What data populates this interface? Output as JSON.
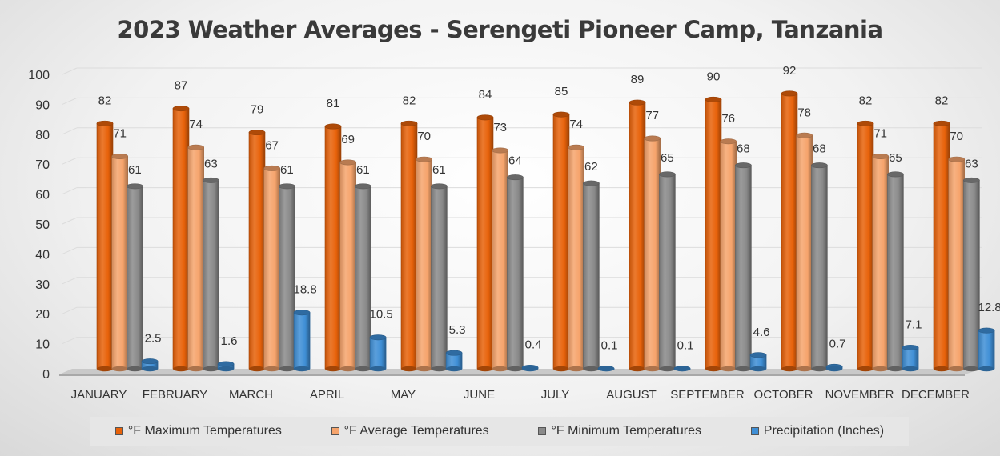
{
  "chart_data": {
    "type": "bar",
    "title": "2023 Weather Averages - Serengeti Pioneer Camp, Tanzania",
    "categories": [
      "JANUARY",
      "FEBRUARY",
      "MARCH",
      "APRIL",
      "MAY",
      "JUNE",
      "JULY",
      "AUGUST",
      "SEPTEMBER",
      "OCTOBER",
      "NOVEMBER",
      "DECEMBER"
    ],
    "series": [
      {
        "name": "°F Maximum Temperatures",
        "color": "#e8620a",
        "values": [
          82,
          87,
          79,
          81,
          82,
          84,
          85,
          89,
          90,
          92,
          82,
          82
        ]
      },
      {
        "name": "°F Average Temperatures",
        "color": "#f6a46c",
        "values": [
          71,
          74,
          67,
          69,
          70,
          73,
          74,
          77,
          76,
          78,
          71,
          70
        ]
      },
      {
        "name": "°F Minimum Temperatures",
        "color": "#8a8a8a",
        "values": [
          61,
          63,
          61,
          61,
          61,
          64,
          62,
          65,
          68,
          68,
          65,
          63
        ]
      },
      {
        "name": "Precipitation (Inches)",
        "color": "#3f8fd6",
        "values": [
          2.5,
          1.6,
          18.8,
          10.5,
          5.3,
          0.4,
          0.1,
          0.1,
          4.6,
          0.7,
          7.1,
          12.8
        ]
      }
    ],
    "data_labels": [
      [
        "82",
        "87",
        "79",
        "81",
        "82",
        "84",
        "85",
        "89",
        "90",
        "92",
        "82",
        "82"
      ],
      [
        "71",
        "74",
        "67",
        "69",
        "70",
        "73",
        "74",
        "77",
        "76",
        "78",
        "71",
        "70"
      ],
      [
        "61",
        "63",
        "61",
        "61",
        "61",
        "64",
        "62",
        "65",
        "68",
        "68",
        "65",
        "63"
      ],
      [
        "2.5",
        "1.6",
        "18.8",
        "10.5",
        "5.3",
        "0.4",
        "0.1",
        "0.1",
        "4.6",
        "0.7",
        "7.1",
        "12.8"
      ]
    ],
    "yticks": [
      "0",
      "10",
      "20",
      "30",
      "40",
      "50",
      "60",
      "70",
      "80",
      "90",
      "100"
    ],
    "ylim": [
      0,
      100
    ],
    "grid": true,
    "legend_position": "bottom",
    "style": "3d-cylinder"
  }
}
